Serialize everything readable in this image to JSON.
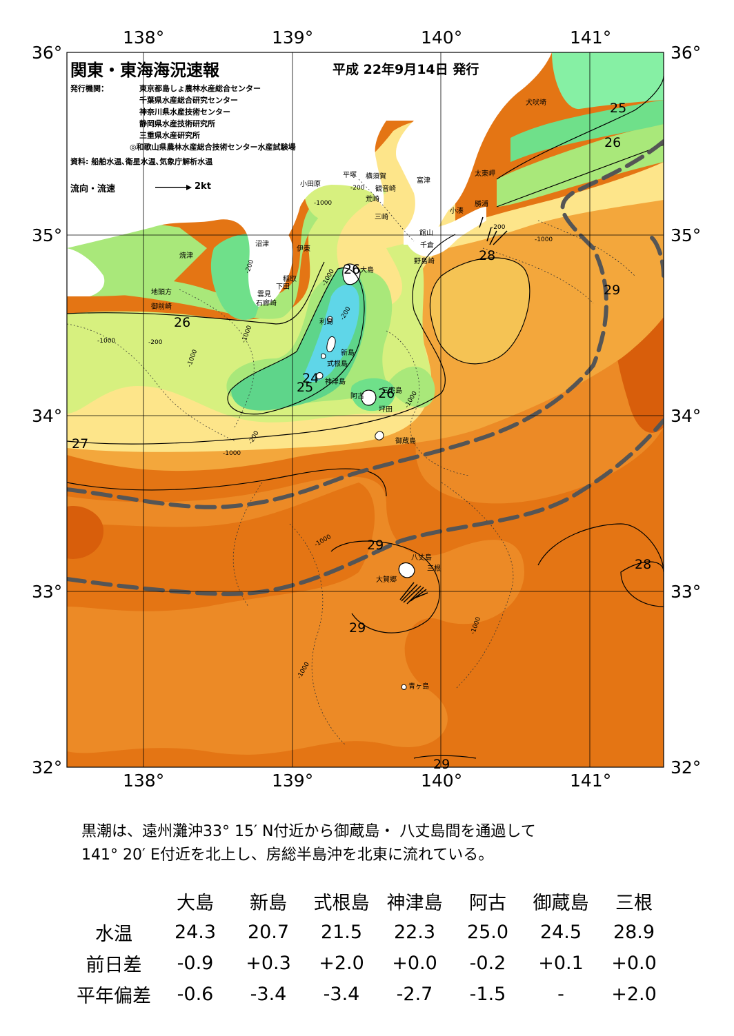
{
  "header": {
    "title": "関東・東海海況速報",
    "date": "平成 22年9月14日 発行",
    "publisher_label": "発行機関：",
    "publishers": [
      "東京都島しょ農林水産総合センター",
      "千葉県水産総合研究センター",
      "神奈川県水産技術センター",
      "静岡県水産技術研究所",
      "三重県水産研究所",
      "◎和歌山県農林水産総合技術センター水産試験場"
    ],
    "source": "資料: 船舶水温､衛星水温､気象庁解析水温",
    "current_legend": "流向・流速",
    "current_scale": "2kt"
  },
  "axes": {
    "lon_top": [
      "138°",
      "139°",
      "140°",
      "141°"
    ],
    "lon_bottom": [
      "138°",
      "139°",
      "140°",
      "141°"
    ],
    "lat_left": [
      "36°",
      "35°",
      "34°",
      "33°",
      "32°"
    ],
    "lat_right": [
      "36°",
      "35°",
      "34°",
      "33°",
      "32°"
    ]
  },
  "map": {
    "places": [
      "犬吠埼",
      "太東岬",
      "勝浦",
      "小湊",
      "富津",
      "横須賀",
      "平塚",
      "小田原",
      "観音崎",
      "荒崎",
      "三崎",
      "館山",
      "千倉",
      "野島崎",
      "沼津",
      "伊東",
      "焼津",
      "稲取",
      "下田",
      "雲見",
      "石廊崎",
      "地頭方",
      "御前崎",
      "大島",
      "利島",
      "新島",
      "式根島",
      "神津島",
      "三宅島",
      "阿古",
      "坪田",
      "御蔵島",
      "八丈島",
      "三根",
      "大賀郷",
      "青ヶ島"
    ],
    "isotherms": [
      "25",
      "26",
      "28",
      "29",
      "26",
      "26",
      "24",
      "25",
      "26",
      "27",
      "29",
      "28",
      "29",
      "29"
    ],
    "depths": [
      "-200",
      "-200",
      "-1000",
      "-200",
      "-1000",
      "-1000",
      "-200",
      "-1000",
      "-1000",
      "-200",
      "-1000",
      "-1000",
      "-1000",
      "-1000",
      "-1000",
      "-200",
      "-1000"
    ],
    "colors": {
      "land": "#ffffff",
      "t24": "#5fd6e8",
      "t25": "#5ed58a",
      "t26": "#a9e87a",
      "t27": "#d7f07f",
      "t27b": "#fde58a",
      "t28": "#f5c354",
      "t28b": "#f3a73c",
      "t29": "#ec8a26",
      "t29b": "#e47514",
      "t30": "#d85e0b",
      "kuroshio": "#555555"
    }
  },
  "summary": {
    "line1": "黒潮は、遠州灘沖33° 15′ N付近から御蔵島・ 八丈島間を通過して",
    "line2": "141° 20′ E付近を北上し、房総半島沖を北東に流れている。"
  },
  "table": {
    "columns": [
      "大島",
      "新島",
      "式根島",
      "神津島",
      "阿古",
      "御蔵島",
      "三根"
    ],
    "rows": [
      {
        "label": "水温",
        "values": [
          "24.3",
          "20.7",
          "21.5",
          "22.3",
          "25.0",
          "24.5",
          "28.9"
        ]
      },
      {
        "label": "前日差",
        "values": [
          "-0.9",
          "+0.3",
          "+2.0",
          "+0.0",
          "-0.2",
          "+0.1",
          "+0.0"
        ]
      },
      {
        "label": "平年偏差",
        "values": [
          "-0.6",
          "-3.4",
          "-3.4",
          "-2.7",
          "-1.5",
          "-",
          "+2.0"
        ]
      }
    ]
  }
}
